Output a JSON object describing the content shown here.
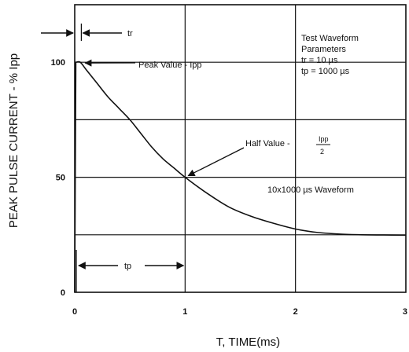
{
  "chart_data": {
    "type": "line",
    "title": "",
    "xlabel": "T, TIME(ms)",
    "ylabel": "PEAK PULSE CURRENT - % Ipp",
    "xlim": [
      0,
      3
    ],
    "ylim": [
      0,
      125
    ],
    "grid": true,
    "x_ticks": [
      "0",
      "1",
      "2",
      "3"
    ],
    "y_ticks": [
      "0",
      "50",
      "100"
    ],
    "series": [
      {
        "name": "10x1000 µs Waveform",
        "x": [
          0,
          0.01,
          0.05,
          0.1,
          0.2,
          0.3,
          0.4,
          0.5,
          0.6,
          0.7,
          0.8,
          0.9,
          1.0,
          1.2,
          1.4,
          1.6,
          1.8,
          2.0,
          2.2,
          2.4,
          2.6,
          2.8,
          3.0
        ],
        "y": [
          0,
          100,
          100,
          97,
          91,
          85,
          80,
          75,
          69,
          63,
          58,
          54,
          50,
          43,
          37,
          33,
          30,
          27.5,
          26,
          25.3,
          25,
          24.9,
          24.8
        ]
      }
    ],
    "annotations": {
      "tr": "tr",
      "peak": "Peak Value - Ipp",
      "half_prefix": "Half Value -",
      "half_num": "Ipp",
      "half_den": "2",
      "params": [
        "Test  Waveform",
        "Parameters",
        "tr = 10 µs",
        "tp = 1000 µs"
      ],
      "waveform": "10x1000 µs Waveform",
      "tp": "tp"
    }
  }
}
